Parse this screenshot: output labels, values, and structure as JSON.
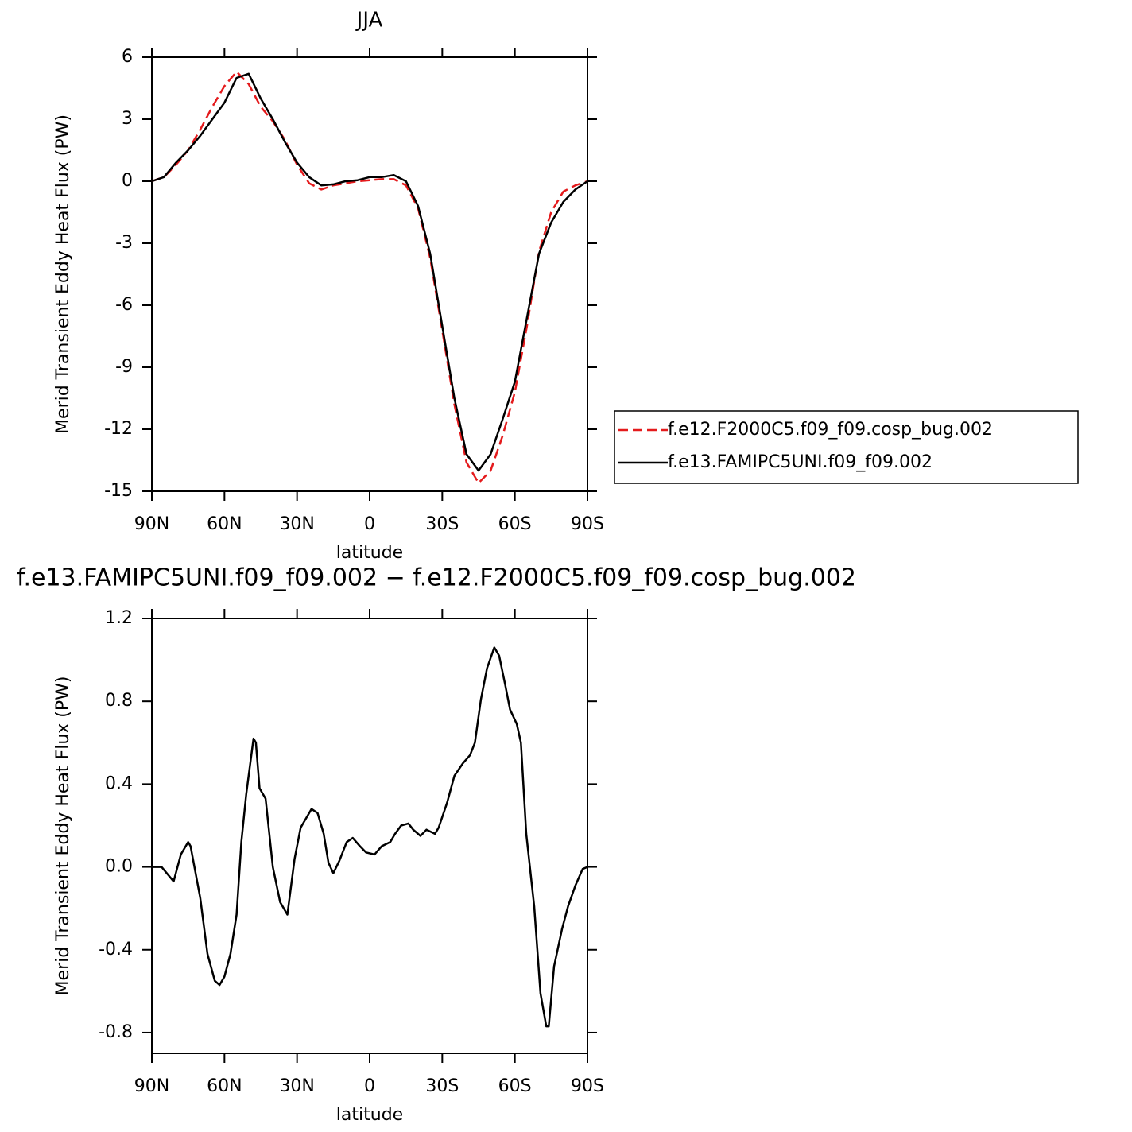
{
  "chart_data": [
    {
      "type": "line",
      "title": "JJA",
      "xlabel": "latitude",
      "ylabel": "Merid Transient Eddy Heat Flux (PW)",
      "x": [
        90,
        85,
        80,
        75,
        70,
        65,
        60,
        55,
        50,
        45,
        40,
        35,
        30,
        25,
        20,
        15,
        10,
        5,
        0,
        -5,
        -10,
        -15,
        -20,
        -25,
        -30,
        -35,
        -40,
        -45,
        -50,
        -55,
        -60,
        -65,
        -70,
        -75,
        -80,
        -85,
        -90
      ],
      "xlim": [
        90,
        -90
      ],
      "xticks": [
        {
          "value": 90,
          "label": "90N"
        },
        {
          "value": 60,
          "label": "60N"
        },
        {
          "value": 30,
          "label": "30N"
        },
        0,
        {
          "value": -30,
          "label": "30S"
        },
        {
          "value": -60,
          "label": "60S"
        },
        {
          "value": -90,
          "label": "90S"
        }
      ],
      "ylim": [
        -15,
        6
      ],
      "yticks": [
        6,
        3,
        0,
        -3,
        -6,
        -9,
        -12,
        -15
      ],
      "legend": "right",
      "series": [
        {
          "name": "f.e12.F2000C5.f09_f09.cosp_bug.002",
          "color": "#e41a1c",
          "dashed": true,
          "values": [
            0,
            0.2,
            0.8,
            1.5,
            2.5,
            3.6,
            4.6,
            5.3,
            4.7,
            3.6,
            2.9,
            2.0,
            0.8,
            -0.1,
            -0.4,
            -0.2,
            -0.1,
            0,
            0.05,
            0.1,
            0.1,
            -0.2,
            -1.3,
            -3.7,
            -7.2,
            -10.8,
            -13.6,
            -14.6,
            -14.0,
            -12.3,
            -10.2,
            -7.0,
            -3.4,
            -1.5,
            -0.5,
            -0.2,
            0
          ]
        },
        {
          "name": "f.e13.FAMIPC5UNI.f09_f09.002",
          "color": "#000000",
          "dashed": false,
          "values": [
            0,
            0.2,
            0.9,
            1.5,
            2.2,
            3.0,
            3.8,
            5.0,
            5.2,
            4.0,
            3.0,
            1.9,
            0.9,
            0.2,
            -0.2,
            -0.15,
            0,
            0.05,
            0.2,
            0.2,
            0.3,
            0,
            -1.2,
            -3.5,
            -7.0,
            -10.5,
            -13.2,
            -14.0,
            -13.2,
            -11.5,
            -9.7,
            -6.6,
            -3.5,
            -2.0,
            -1.0,
            -0.4,
            0
          ]
        }
      ]
    },
    {
      "type": "line",
      "title": "f.e13.FAMIPC5UNI.f09_f09.002 − f.e12.F2000C5.f09_f09.cosp_bug.002",
      "xlabel": "latitude",
      "ylabel": "Merid Transient Eddy Heat Flux (PW)",
      "x": [
        90,
        86,
        81,
        78,
        75,
        74,
        70,
        67,
        64,
        62,
        60,
        57.5,
        55,
        53,
        51,
        48,
        47,
        45.5,
        43,
        40,
        37,
        34,
        31,
        28.5,
        24,
        21.5,
        19,
        17,
        15,
        12.5,
        9.5,
        7,
        4,
        1.5,
        -2,
        -5,
        -8.5,
        -10.5,
        -13,
        -16,
        -18,
        -21,
        -23.5,
        -27,
        -28.5,
        -32,
        -35,
        -38.5,
        -41.5,
        -43.5,
        -46,
        -48.5,
        -51.5,
        -53.5,
        -56,
        -58,
        -60.8,
        -62.5,
        -64.7,
        -68,
        -70.6,
        -73,
        -74,
        -76.2,
        -79.5,
        -82,
        -85,
        -88,
        -90
      ],
      "values": [
        0,
        0,
        -0.07,
        0.06,
        0.12,
        0.1,
        -0.15,
        -0.42,
        -0.55,
        -0.57,
        -0.53,
        -0.42,
        -0.23,
        0.12,
        0.35,
        0.62,
        0.6,
        0.38,
        0.33,
        0,
        -0.17,
        -0.23,
        0.04,
        0.19,
        0.28,
        0.26,
        0.16,
        0.02,
        -0.03,
        0.03,
        0.12,
        0.14,
        0.1,
        0.07,
        0.06,
        0.1,
        0.12,
        0.16,
        0.2,
        0.21,
        0.18,
        0.15,
        0.18,
        0.16,
        0.19,
        0.31,
        0.44,
        0.5,
        0.54,
        0.6,
        0.81,
        0.96,
        1.06,
        1.02,
        0.88,
        0.76,
        0.69,
        0.6,
        0.16,
        -0.19,
        -0.61,
        -0.77,
        -0.77,
        -0.48,
        -0.3,
        -0.19,
        -0.09,
        -0.01,
        0
      ],
      "color": "#000000",
      "xlim": [
        90,
        -90
      ],
      "xticks": [
        {
          "value": 90,
          "label": "90N"
        },
        {
          "value": 60,
          "label": "60N"
        },
        {
          "value": 30,
          "label": "30N"
        },
        0,
        {
          "value": -30,
          "label": "30S"
        },
        {
          "value": -60,
          "label": "60S"
        },
        {
          "value": -90,
          "label": "90S"
        }
      ],
      "ylim": [
        -0.9,
        1.2
      ],
      "yticks": [
        1.2,
        0.8,
        0.4,
        {
          "value": 0,
          "label": "0.0"
        },
        -0.4,
        -0.8
      ]
    }
  ]
}
